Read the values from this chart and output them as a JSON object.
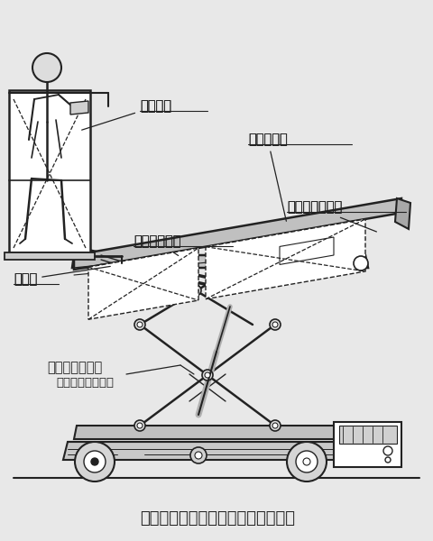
{
  "bg_color": "#e8e8e8",
  "line_color": "#222222",
  "caption": "図１　　開発機の構造と各部の名称",
  "figsize": [
    4.81,
    6.0
  ],
  "dpi": 100,
  "labels": {
    "gondola": "ゴンドラ",
    "container_stand": "コンテナ台",
    "container_deck": "コンテナデッキ",
    "boom": "ブーム",
    "base_deck": "ベースデッキ",
    "lift_line1": "昇　降　装　置",
    "lift_line2": "（Ｘ字状リンク）"
  }
}
